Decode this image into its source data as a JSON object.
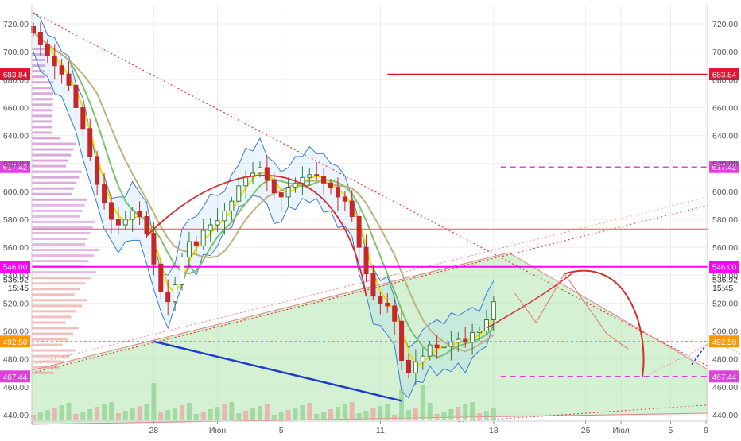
{
  "chart_data": {
    "type": "candlestick",
    "title": "",
    "xlabel": "",
    "ylabel": "",
    "ylim": [
      432,
      735
    ],
    "y_ticks": [
      440,
      460,
      480,
      500,
      520,
      540,
      560,
      580,
      600,
      620,
      640,
      660,
      680,
      700,
      720
    ],
    "y_tick_labels": [
      "440.00",
      "460.00",
      "480.00",
      "500.00",
      "520.00",
      "540.00",
      "560.00",
      "580.00",
      "600.00",
      "620.00",
      "640.00",
      "660.00",
      "680.00",
      "700.00",
      "720.00"
    ],
    "x_index_range": [
      0,
      95
    ],
    "x_ticks": [
      {
        "index": 17,
        "label": "28"
      },
      {
        "index": 26,
        "label": "Июн"
      },
      {
        "index": 35,
        "label": "5"
      },
      {
        "index": 49,
        "label": "11"
      },
      {
        "index": 65,
        "label": "18"
      },
      {
        "index": 78,
        "label": "25"
      },
      {
        "index": 83,
        "label": "Июл"
      },
      {
        "index": 90,
        "label": "5"
      },
      {
        "index": 95,
        "label": "9"
      }
    ],
    "series_close": [
      714,
      705,
      697,
      690,
      684,
      676,
      660,
      645,
      625,
      605,
      592,
      580,
      576,
      580,
      586,
      582,
      570,
      548,
      528,
      521,
      533,
      553,
      564,
      561,
      572,
      576,
      579,
      586,
      593,
      604,
      611,
      613,
      617,
      608,
      599,
      596,
      603,
      606,
      610,
      612,
      611,
      606,
      603,
      596,
      593,
      582,
      560,
      541,
      525,
      520,
      518,
      507,
      479,
      470,
      478,
      482,
      490,
      488,
      489,
      492,
      494,
      492,
      499,
      500,
      508,
      521
    ],
    "highlighted_levels": [
      {
        "value": 683.84,
        "label": "683.84",
        "color": "#e8102e"
      },
      {
        "value": 617.42,
        "label": "617.42",
        "color": "#e040e0"
      },
      {
        "value": 546.0,
        "label": "546.00",
        "color": "#ff00ff"
      },
      {
        "value": 492.5,
        "label": "492.50",
        "color": "#ff9800"
      },
      {
        "value": 467.44,
        "label": "467.44",
        "color": "#e040e0"
      }
    ],
    "right_price_labels": [
      {
        "value": 536.92,
        "label": "536.92"
      },
      {
        "value": 531.0,
        "label": "15:45"
      }
    ],
    "colors": {
      "up": "#2e7d32",
      "down": "#c62828",
      "triangle_fill": "#9fe09f",
      "trend_down": "#e53935",
      "support_blue": "#1e3ec8"
    }
  }
}
